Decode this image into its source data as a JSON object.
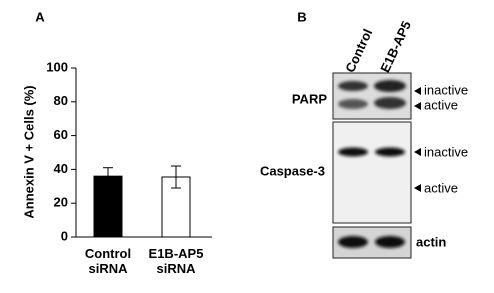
{
  "chart_data": {
    "type": "bar",
    "panel_label": "A",
    "ylabel": "Annexin V + Cells (%)",
    "categories": [
      "Control siRNA",
      "E1B-AP5 siRNA"
    ],
    "values": [
      36,
      35.5
    ],
    "errors": [
      5,
      6.5
    ],
    "colors": [
      "#000000",
      "#ffffff"
    ],
    "ylim": [
      0,
      100
    ],
    "yticks": [
      0,
      20,
      40,
      60,
      80,
      100
    ],
    "grid": false
  },
  "blot": {
    "panel_label": "B",
    "lanes": [
      "Control",
      "E1B-AP5"
    ],
    "rows": [
      {
        "label": "PARP",
        "bands": [
          "inactive",
          "active"
        ]
      },
      {
        "label": "Caspase-3",
        "bands": [
          "inactive",
          "active"
        ]
      },
      {
        "label": "actin"
      }
    ]
  }
}
